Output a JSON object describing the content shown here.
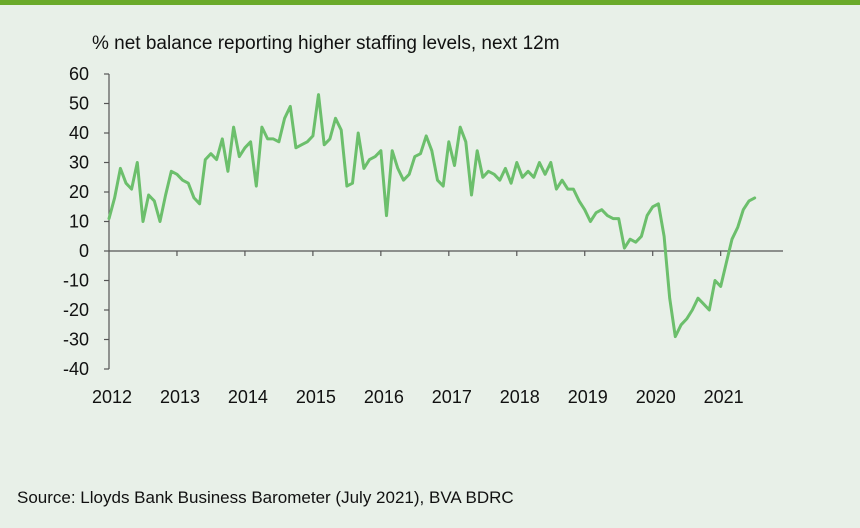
{
  "chart_data": {
    "type": "line",
    "title": "% net balance reporting higher staffing levels, next 12m",
    "xlabel": "",
    "ylabel": "",
    "ylim": [
      -40,
      60
    ],
    "yticks": [
      "60",
      "50",
      "40",
      "30",
      "20",
      "10",
      "0",
      "-10",
      "-20",
      "-30",
      "-40"
    ],
    "ytick_values": [
      60,
      50,
      40,
      30,
      20,
      10,
      0,
      -10,
      -20,
      -30,
      -40
    ],
    "xticks": [
      "2012",
      "2013",
      "2014",
      "2015",
      "2016",
      "2017",
      "2018",
      "2019",
      "2020",
      "2021"
    ],
    "xrange": [
      2012.0,
      2021.917
    ],
    "grid": false,
    "line_color": "#6cbf6c",
    "series": [
      {
        "name": "",
        "x": [
          2012.0,
          2012.083,
          2012.167,
          2012.25,
          2012.333,
          2012.417,
          2012.5,
          2012.583,
          2012.667,
          2012.75,
          2012.833,
          2012.917,
          2013.0,
          2013.083,
          2013.167,
          2013.25,
          2013.333,
          2013.417,
          2013.5,
          2013.583,
          2013.667,
          2013.75,
          2013.833,
          2013.917,
          2014.0,
          2014.083,
          2014.167,
          2014.25,
          2014.333,
          2014.417,
          2014.5,
          2014.583,
          2014.667,
          2014.75,
          2014.833,
          2014.917,
          2015.0,
          2015.083,
          2015.167,
          2015.25,
          2015.333,
          2015.417,
          2015.5,
          2015.583,
          2015.667,
          2015.75,
          2015.833,
          2015.917,
          2016.0,
          2016.083,
          2016.167,
          2016.25,
          2016.333,
          2016.417,
          2016.5,
          2016.583,
          2016.667,
          2016.75,
          2016.833,
          2016.917,
          2017.0,
          2017.083,
          2017.167,
          2017.25,
          2017.333,
          2017.417,
          2017.5,
          2017.583,
          2017.667,
          2017.75,
          2017.833,
          2017.917,
          2018.0,
          2018.083,
          2018.167,
          2018.25,
          2018.333,
          2018.417,
          2018.5,
          2018.583,
          2018.667,
          2018.75,
          2018.833,
          2018.917,
          2019.0,
          2019.083,
          2019.167,
          2019.25,
          2019.333,
          2019.417,
          2019.5,
          2019.583,
          2019.667,
          2019.75,
          2019.833,
          2019.917,
          2020.0,
          2020.083,
          2020.167,
          2020.25,
          2020.333,
          2020.417,
          2020.5,
          2020.583,
          2020.667,
          2020.75,
          2020.833,
          2020.917,
          2021.0,
          2021.083,
          2021.167,
          2021.25,
          2021.333,
          2021.417,
          2021.5
        ],
        "values": [
          11,
          18,
          28,
          23,
          21,
          30,
          10,
          19,
          17,
          10,
          19,
          27,
          26,
          24,
          23,
          18,
          16,
          31,
          33,
          31,
          38,
          27,
          42,
          32,
          35,
          37,
          22,
          42,
          38,
          38,
          37,
          45,
          49,
          35,
          36,
          37,
          39,
          53,
          36,
          38,
          45,
          41,
          22,
          23,
          40,
          28,
          31,
          32,
          34,
          12,
          34,
          28,
          24,
          26,
          32,
          33,
          39,
          34,
          24,
          22,
          37,
          29,
          42,
          37,
          19,
          34,
          25,
          27,
          26,
          24,
          28,
          23,
          30,
          25,
          27,
          25,
          30,
          26,
          30,
          21,
          24,
          21,
          21,
          17,
          14,
          10,
          13,
          14,
          12,
          11,
          11,
          1,
          4,
          3,
          5,
          12,
          15,
          16,
          5,
          -16,
          -29,
          -25,
          -23,
          -20,
          -16,
          -18,
          -20,
          -10,
          -12,
          -4,
          4,
          8,
          14,
          17,
          18
        ]
      }
    ]
  },
  "footer": {
    "source": "Source: Lloyds Bank Business Barometer (July 2021), BVA BDRC"
  }
}
